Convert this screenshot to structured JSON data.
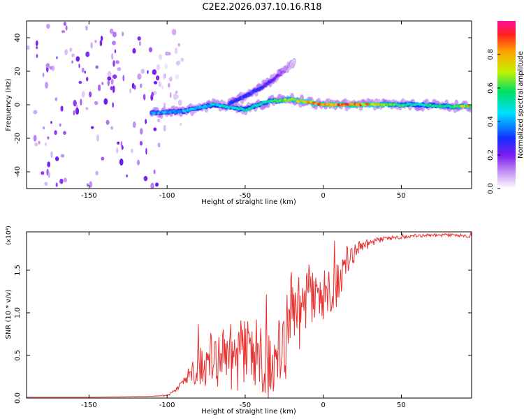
{
  "title": "C2E2.2026.037.10.16.R18",
  "colors": {
    "background": "#ffffff",
    "axis": "#000000",
    "snr_line": "#e8302f"
  },
  "chart_data": [
    {
      "type": "heatmap",
      "name": "spectrogram",
      "xlabel": "Height of straight line (km)",
      "ylabel": "Frequency (Hz)",
      "xlim": [
        -190,
        95
      ],
      "ylim": [
        -50,
        50
      ],
      "xticks": [
        "-150",
        "-100",
        "-50",
        "0",
        "50"
      ],
      "xtick_values": [
        -150,
        -100,
        -50,
        0,
        50
      ],
      "yticks": [
        "-40",
        "-20",
        "0",
        "20",
        "40"
      ],
      "ytick_values": [
        -40,
        -20,
        0,
        20,
        40
      ],
      "noise_region_x": [
        -190,
        -98
      ],
      "signal_tracks": [
        {
          "name": "main-track",
          "x": [
            -110,
            -90,
            -70,
            -50,
            -35,
            -20,
            0,
            20,
            40,
            60,
            80,
            95
          ],
          "y": [
            -5,
            -4,
            0,
            -3,
            2,
            3,
            0,
            0,
            0,
            0,
            -1,
            -1
          ],
          "amplitude": [
            0.4,
            0.45,
            0.5,
            0.55,
            0.6,
            0.75,
            0.9,
            0.95,
            0.7,
            0.55,
            0.6,
            0.8
          ]
        },
        {
          "name": "upper-branch",
          "x": [
            -60,
            -50,
            -40,
            -32,
            -25,
            -18
          ],
          "y": [
            1,
            5,
            10,
            15,
            20,
            26
          ],
          "amplitude": [
            0.3,
            0.35,
            0.3,
            0.25,
            0.15,
            0.05
          ]
        }
      ],
      "colorbar": {
        "label": "Normalized spectral amplitude",
        "ticks": [
          "0.0",
          "0.2",
          "0.4",
          "0.6",
          "0.8"
        ],
        "tick_values": [
          0.0,
          0.2,
          0.4,
          0.6,
          0.8
        ],
        "range": [
          0,
          1
        ]
      }
    },
    {
      "type": "line",
      "name": "snr",
      "xlabel": "Height of straight line (km)",
      "ylabel": "SNR (10 * v/v)",
      "scale_label": "(x10⁴)",
      "xlim": [
        -190,
        95
      ],
      "ylim": [
        0,
        1.95
      ],
      "xticks": [
        "-150",
        "-100",
        "-50",
        "0",
        "50"
      ],
      "xtick_values": [
        -150,
        -100,
        -50,
        0,
        50
      ],
      "yticks": [
        "0.0",
        "0.5",
        "1.0",
        "1.5"
      ],
      "ytick_values": [
        0.0,
        0.5,
        1.0,
        1.5
      ],
      "series": [
        {
          "name": "SNR",
          "x": [
            -190,
            -150,
            -110,
            -100,
            -95,
            -90,
            -85,
            -82,
            -80,
            -75,
            -70,
            -65,
            -60,
            -55,
            -50,
            -45,
            -40,
            -35,
            -30,
            -25,
            -22,
            -20,
            -15,
            -10,
            -5,
            0,
            5,
            10,
            15,
            20,
            25,
            30,
            40,
            50,
            60,
            70,
            80,
            95
          ],
          "y": [
            0.01,
            0.01,
            0.02,
            0.03,
            0.08,
            0.18,
            0.28,
            0.35,
            0.45,
            0.35,
            0.4,
            0.45,
            0.5,
            0.45,
            0.5,
            0.45,
            0.5,
            0.45,
            0.35,
            0.55,
            0.9,
            1.0,
            1.0,
            1.2,
            1.1,
            1.15,
            1.3,
            1.4,
            1.55,
            1.7,
            1.78,
            1.82,
            1.87,
            1.89,
            1.9,
            1.91,
            1.91,
            1.9
          ],
          "spread": [
            0,
            0,
            0,
            0.01,
            0.02,
            0.05,
            0.12,
            0.2,
            0.25,
            0.3,
            0.35,
            0.35,
            0.4,
            0.45,
            0.45,
            0.5,
            0.45,
            0.45,
            0.4,
            0.5,
            0.6,
            0.5,
            0.45,
            0.4,
            0.35,
            0.35,
            0.3,
            0.3,
            0.2,
            0.12,
            0.08,
            0.05,
            0.03,
            0.02,
            0.02,
            0.02,
            0.02,
            0.02
          ]
        }
      ]
    }
  ]
}
